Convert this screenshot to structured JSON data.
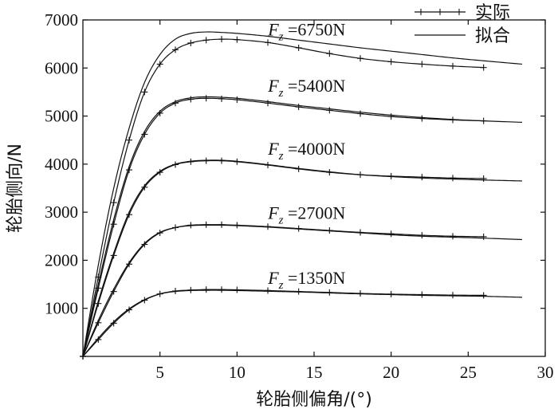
{
  "chart_data": {
    "type": "line",
    "title": "",
    "xlabel": "轮胎侧偏角/(°)",
    "ylabel": "轮胎侧向/N",
    "xlim": [
      0,
      30
    ],
    "ylim": [
      0,
      7000
    ],
    "xticks": [
      5,
      10,
      15,
      20,
      25,
      30
    ],
    "yticks": [
      1000,
      2000,
      3000,
      4000,
      5000,
      6000,
      7000
    ],
    "grid": false,
    "legend": {
      "position": "top-right",
      "entries": [
        {
          "label": "实际",
          "style": "line-plus"
        },
        {
          "label": "拟合",
          "style": "line"
        }
      ]
    },
    "annotations": [
      {
        "var": "F",
        "sub": "z",
        "text": " =6750N",
        "x": 20.7,
        "y": 6810
      },
      {
        "var": "F",
        "sub": "z",
        "text": " =5400N",
        "x": 20.7,
        "y": 5640
      },
      {
        "var": "F",
        "sub": "z",
        "text": " =4000N",
        "x": 20.7,
        "y": 4330
      },
      {
        "var": "F",
        "sub": "z",
        "text": " =2700N",
        "x": 20.7,
        "y": 2990
      },
      {
        "var": "F",
        "sub": "z",
        "text": " =1350N",
        "x": 20.7,
        "y": 1640
      }
    ],
    "series": [
      {
        "load": 6750,
        "kind": "fit",
        "x": [
          0,
          1,
          2,
          3,
          4,
          5,
          6,
          7,
          8,
          9,
          10,
          12,
          14,
          16,
          18,
          20,
          22,
          24,
          26,
          28.5
        ],
        "y": [
          0,
          1900,
          3500,
          4750,
          5700,
          6280,
          6600,
          6720,
          6750,
          6740,
          6720,
          6660,
          6580,
          6500,
          6420,
          6350,
          6280,
          6210,
          6150,
          6080
        ]
      },
      {
        "load": 6750,
        "kind": "measured",
        "x": [
          0,
          1,
          2,
          3,
          4,
          5,
          6,
          7,
          8,
          9,
          10,
          12,
          14,
          16,
          18,
          20,
          22,
          24,
          26
        ],
        "y": [
          0,
          1650,
          3200,
          4500,
          5500,
          6080,
          6380,
          6520,
          6580,
          6600,
          6590,
          6530,
          6420,
          6300,
          6200,
          6130,
          6080,
          6040,
          6010
        ]
      },
      {
        "load": 5400,
        "kind": "fit",
        "x": [
          0,
          1,
          2,
          3,
          4,
          5,
          6,
          7,
          8,
          9,
          10,
          12,
          14,
          16,
          18,
          20,
          22,
          24,
          26,
          28.5
        ],
        "y": [
          0,
          1500,
          2850,
          3950,
          4680,
          5100,
          5300,
          5380,
          5400,
          5390,
          5370,
          5300,
          5220,
          5150,
          5080,
          5020,
          4970,
          4930,
          4900,
          4870
        ]
      },
      {
        "load": 5400,
        "kind": "measured",
        "x": [
          0,
          1,
          2,
          3,
          4,
          5,
          6,
          7,
          8,
          9,
          10,
          12,
          14,
          16,
          18,
          20,
          22,
          24,
          26
        ],
        "y": [
          0,
          1420,
          2750,
          3880,
          4620,
          5060,
          5270,
          5350,
          5370,
          5360,
          5340,
          5270,
          5190,
          5120,
          5050,
          4990,
          4950,
          4920,
          4900
        ]
      },
      {
        "load": 4000,
        "kind": "fit",
        "x": [
          0,
          1,
          2,
          3,
          4,
          5,
          6,
          7,
          8,
          9,
          10,
          12,
          14,
          16,
          18,
          20,
          22,
          24,
          26,
          28.5
        ],
        "y": [
          0,
          1150,
          2150,
          3000,
          3550,
          3850,
          4000,
          4060,
          4080,
          4080,
          4060,
          3990,
          3910,
          3840,
          3780,
          3740,
          3710,
          3690,
          3670,
          3650
        ]
      },
      {
        "load": 4000,
        "kind": "measured",
        "x": [
          0,
          1,
          2,
          3,
          4,
          5,
          6,
          7,
          8,
          9,
          10,
          12,
          14,
          16,
          18,
          20,
          22,
          24,
          26
        ],
        "y": [
          0,
          1100,
          2100,
          2950,
          3520,
          3830,
          3990,
          4050,
          4070,
          4070,
          4050,
          3980,
          3900,
          3830,
          3780,
          3750,
          3730,
          3710,
          3700
        ]
      },
      {
        "load": 2700,
        "kind": "fit",
        "x": [
          0,
          1,
          2,
          3,
          4,
          5,
          6,
          7,
          8,
          9,
          10,
          12,
          14,
          16,
          18,
          20,
          22,
          24,
          26,
          28.5
        ],
        "y": [
          0,
          750,
          1400,
          1950,
          2350,
          2580,
          2680,
          2720,
          2730,
          2730,
          2720,
          2690,
          2650,
          2610,
          2570,
          2530,
          2500,
          2480,
          2460,
          2430
        ]
      },
      {
        "load": 2700,
        "kind": "measured",
        "x": [
          0,
          1,
          2,
          3,
          4,
          5,
          6,
          7,
          8,
          9,
          10,
          12,
          14,
          16,
          18,
          20,
          22,
          24,
          26
        ],
        "y": [
          0,
          700,
          1350,
          1920,
          2330,
          2570,
          2680,
          2730,
          2740,
          2740,
          2730,
          2700,
          2660,
          2620,
          2580,
          2550,
          2520,
          2500,
          2490
        ]
      },
      {
        "load": 1350,
        "kind": "fit",
        "x": [
          0,
          1,
          2,
          3,
          4,
          5,
          6,
          7,
          8,
          9,
          10,
          12,
          14,
          16,
          18,
          20,
          22,
          24,
          26,
          28.5
        ],
        "y": [
          0,
          380,
          720,
          990,
          1180,
          1300,
          1350,
          1370,
          1375,
          1375,
          1370,
          1355,
          1340,
          1320,
          1300,
          1285,
          1270,
          1260,
          1250,
          1230
        ]
      },
      {
        "load": 1350,
        "kind": "measured",
        "x": [
          0,
          1,
          2,
          3,
          4,
          5,
          6,
          7,
          8,
          9,
          10,
          12,
          14,
          16,
          18,
          20,
          22,
          24,
          26
        ],
        "y": [
          0,
          350,
          690,
          970,
          1170,
          1300,
          1360,
          1380,
          1390,
          1390,
          1385,
          1370,
          1350,
          1330,
          1310,
          1295,
          1285,
          1275,
          1270
        ]
      }
    ]
  }
}
